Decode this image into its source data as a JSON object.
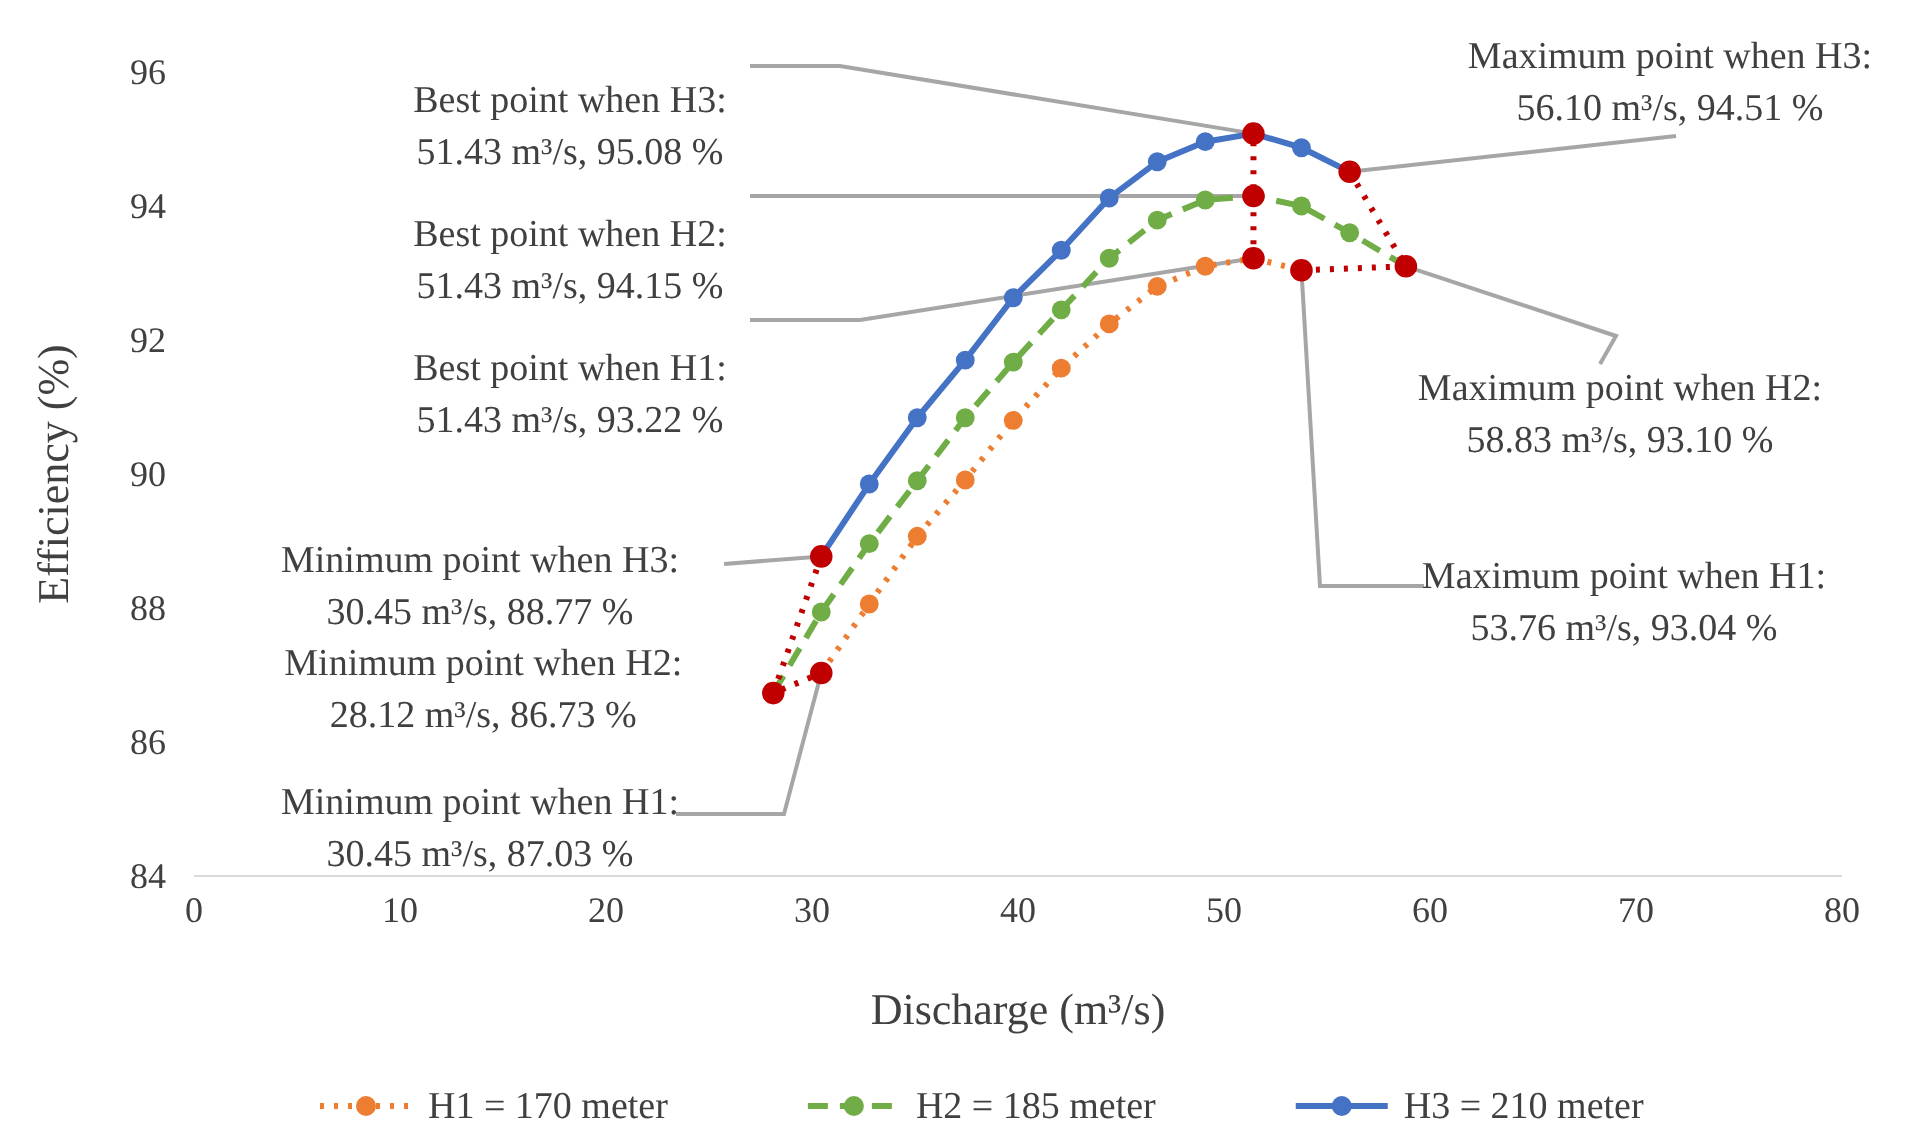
{
  "chart_data": {
    "type": "line",
    "xlabel": "Discharge (m³/s)",
    "ylabel": "Efficiency (%)",
    "xlim": [
      0,
      80
    ],
    "xticks": [
      0,
      10,
      20,
      30,
      40,
      50,
      60,
      70,
      80
    ],
    "ylim": [
      84,
      96
    ],
    "yticks": [
      84,
      86,
      88,
      90,
      92,
      94,
      96
    ],
    "legend": "bottom",
    "marker": "circle",
    "series": [
      {
        "name": "H1 = 170 meter",
        "color": "#ed7d31",
        "line_style": "dotted",
        "x": [
          30.45,
          32.78,
          35.11,
          37.44,
          39.77,
          42.1,
          44.43,
          46.76,
          49.09,
          51.43,
          53.76
        ],
        "values": [
          87.03,
          88.06,
          89.07,
          89.91,
          90.8,
          91.58,
          92.24,
          92.8,
          93.1,
          93.22,
          93.04
        ]
      },
      {
        "name": "H2 = 185 meter",
        "color": "#70ad47",
        "line_style": "dashed",
        "x": [
          28.12,
          30.45,
          32.78,
          35.11,
          37.44,
          39.77,
          42.1,
          44.43,
          46.76,
          49.09,
          51.43,
          53.76,
          56.1,
          58.83
        ],
        "values": [
          86.73,
          87.94,
          88.96,
          89.9,
          90.84,
          91.67,
          92.45,
          93.22,
          93.79,
          94.09,
          94.15,
          94.0,
          93.6,
          93.1
        ]
      },
      {
        "name": "H3 = 210 meter",
        "color": "#4472c4",
        "line_style": "solid",
        "x": [
          30.45,
          32.78,
          35.11,
          37.44,
          39.77,
          42.1,
          44.43,
          46.76,
          49.09,
          51.43,
          53.76,
          56.1
        ],
        "values": [
          88.77,
          89.85,
          90.84,
          91.7,
          92.63,
          93.34,
          94.12,
          94.66,
          94.96,
          95.08,
          94.87,
          94.51
        ]
      },
      {
        "color": "#c00000",
        "line_style": "dotted",
        "x": [
          30.45,
          28.12,
          30.45
        ],
        "values": [
          88.77,
          86.73,
          87.03
        ]
      },
      {
        "color": "#c00000",
        "line_style": "dotted",
        "x": [
          51.43,
          51.43,
          51.43
        ],
        "values": [
          93.22,
          94.15,
          95.08
        ]
      },
      {
        "color": "#c00000",
        "line_style": "dotted",
        "x": [
          56.1,
          58.83,
          53.76
        ],
        "values": [
          94.51,
          93.1,
          93.04
        ]
      }
    ],
    "annotations": [
      {
        "text": "Best point when H3:\n51.43 m³/s,  95.08 %",
        "x": 51.43,
        "y": 95.08
      },
      {
        "text": "Best point when H2:\n51.43 m³/s,  94.15 %",
        "x": 51.43,
        "y": 94.15
      },
      {
        "text": "Best point when H1:\n51.43 m³/s,  93.22 %",
        "x": 51.43,
        "y": 93.22
      },
      {
        "text": "Maximum point when H3:\n56.10 m³/s,  94.51 %",
        "x": 56.1,
        "y": 94.51
      },
      {
        "text": "Maximum point when H2:\n58.83 m³/s,  93.10 %",
        "x": 58.83,
        "y": 93.1
      },
      {
        "text": "Maximum point when H1:\n53.76 m³/s,  93.04 %",
        "x": 53.76,
        "y": 93.04
      },
      {
        "text": "Minimum point when H3:\n30.45 m³/s,  88.77 %",
        "x": 30.45,
        "y": 88.77
      },
      {
        "text": "Minimum point when H2:\n28.12 m³/s,  86.73 %",
        "x": 28.12,
        "y": 86.73
      },
      {
        "text": "Minimum point when H1:\n30.45 m³/s,  87.03 %",
        "x": 30.45,
        "y": 87.03
      }
    ]
  }
}
